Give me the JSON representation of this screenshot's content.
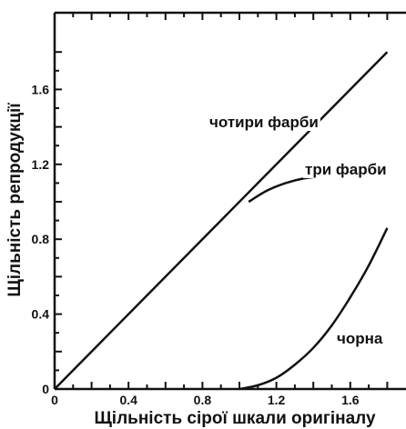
{
  "chart_data": {
    "type": "line",
    "xlabel": "Щільність сірої шкали оригіналу",
    "ylabel": "Щільність репродукції",
    "xlim": [
      0,
      1.8
    ],
    "ylim": [
      0,
      1.8
    ],
    "x_ticks": [
      "0",
      "0.4",
      "0.8",
      "1.2",
      "1.6"
    ],
    "y_ticks": [
      "0",
      "0.4",
      "0.8",
      "1.2",
      "1.6"
    ],
    "grid": false,
    "legend": "none",
    "series": [
      {
        "name": "чотири фарби",
        "x": [
          0,
          1.6,
          1.8
        ],
        "y": [
          0,
          1.6,
          1.8
        ]
      },
      {
        "name": "три фарби",
        "x": [
          1.05,
          1.15,
          1.25,
          1.35,
          1.45,
          1.55,
          1.65,
          1.8
        ],
        "y": [
          1.0,
          1.06,
          1.1,
          1.125,
          1.135,
          1.14,
          1.145,
          1.145
        ]
      },
      {
        "name": "чорна",
        "x": [
          1.0,
          1.1,
          1.2,
          1.3,
          1.4,
          1.5,
          1.6,
          1.7,
          1.8
        ],
        "y": [
          0,
          0.02,
          0.06,
          0.13,
          0.22,
          0.34,
          0.49,
          0.66,
          0.86
        ]
      }
    ]
  }
}
